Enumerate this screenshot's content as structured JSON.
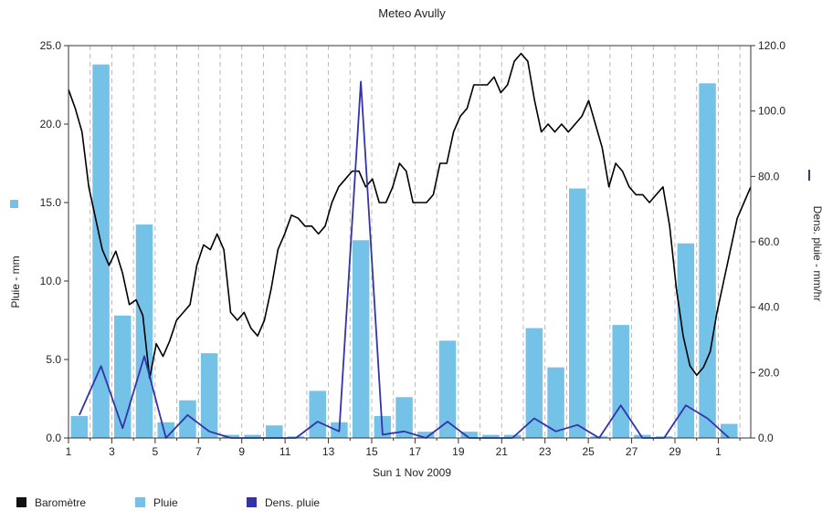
{
  "chart_data": {
    "title": "Meteo  Avully",
    "xlabel": "Sun 1 Nov 2009",
    "ylabel_left": "Pluie - mm",
    "ylabel_right": "Dens. pluie - mm/hr",
    "x_tick_labels": [
      "1",
      "3",
      "5",
      "7",
      "9",
      "11",
      "13",
      "15",
      "17",
      "19",
      "21",
      "23",
      "25",
      "27",
      "29",
      "1"
    ],
    "left_axis": {
      "ticks": [
        "0.0",
        "5.0",
        "10.0",
        "15.0",
        "20.0",
        "25.0"
      ],
      "ylim": [
        0,
        25
      ]
    },
    "right_axis": {
      "ticks": [
        "0.0",
        "20.0",
        "40.0",
        "60.0",
        "80.0",
        "100.0",
        "120.0"
      ],
      "ylim": [
        0,
        120
      ]
    },
    "grid": "dashed vertical",
    "legend_position": "bottom-left",
    "series": [
      {
        "name": "Baromètre",
        "type": "line",
        "color": "#000000",
        "values": [
          22.2,
          21.0,
          19.5,
          16.0,
          14.0,
          12.0,
          11.0,
          11.9,
          10.5,
          8.5,
          8.8,
          7.8,
          3.8,
          6.0,
          5.2,
          6.2,
          7.5,
          8.0,
          8.5,
          11.0,
          12.3,
          12.0,
          13.0,
          12.0,
          8.0,
          7.5,
          8.0,
          7.0,
          6.5,
          7.5,
          9.5,
          12.0,
          13.0,
          14.2,
          14.0,
          13.5,
          13.5,
          13.0,
          13.5,
          15.0,
          16.0,
          16.5,
          17.0,
          17.0,
          16.0,
          16.5,
          15.0,
          15.0,
          16.0,
          17.5,
          17.0,
          15.0,
          15.0,
          15.0,
          15.5,
          17.5,
          17.5,
          19.5,
          20.5,
          21.0,
          22.5,
          22.5,
          22.5,
          23.0,
          22.0,
          22.5,
          24.0,
          24.5,
          24.0,
          21.5,
          19.5,
          20.0,
          19.5,
          20.0,
          19.5,
          20.0,
          20.5,
          21.5,
          20.0,
          18.5,
          16.0,
          17.5,
          17.0,
          16.0,
          15.5,
          15.5,
          15.0,
          15.5,
          16.0,
          13.5,
          9.5,
          6.5,
          4.6,
          4.0,
          4.5,
          5.5,
          8.0,
          10.0,
          12.0,
          14.0,
          15.0,
          16.0
        ]
      },
      {
        "name": "Pluie",
        "type": "bar",
        "color": "#74c2e8",
        "axis": "left",
        "x": [
          1.5,
          2.5,
          3.5,
          4.5,
          5.5,
          6.5,
          7.5,
          8.5,
          9.5,
          10.5,
          11.5,
          12.5,
          13.5,
          14.5,
          15.5,
          16.5,
          17.5,
          18.5,
          19.5,
          20.5,
          21.5,
          22.5,
          23.5,
          24.5,
          25.5,
          26.5,
          27.5,
          28.5,
          29.5,
          30.5,
          31.5
        ],
        "values": [
          1.4,
          23.8,
          7.8,
          13.6,
          1.0,
          2.4,
          5.4,
          0.2,
          0.2,
          0.8,
          0.1,
          3.0,
          1.0,
          12.6,
          1.4,
          2.6,
          0.4,
          6.2,
          0.4,
          0.2,
          0.2,
          7.0,
          4.5,
          15.9,
          0.1,
          7.2,
          0.2,
          0.1,
          12.4,
          22.6,
          0.9
        ]
      },
      {
        "name": "Dens. pluie",
        "type": "line",
        "color": "#3333aa",
        "axis": "right",
        "x": [
          1.5,
          2.5,
          3.5,
          4.5,
          5.5,
          6.5,
          7.5,
          8.5,
          9.5,
          10.5,
          11.5,
          12.5,
          13.5,
          14.5,
          15.5,
          16.5,
          17.5,
          18.5,
          19.5,
          20.5,
          21.5,
          22.5,
          23.5,
          24.5,
          25.5,
          26.5,
          27.5,
          28.5,
          29.5,
          30.5,
          31.5
        ],
        "values": [
          7,
          22,
          3,
          25,
          0,
          7,
          2,
          0,
          0,
          0,
          0,
          5,
          2,
          109,
          1,
          2,
          0,
          5,
          0,
          0,
          0,
          6,
          2,
          4,
          0,
          10,
          0,
          0,
          10,
          6,
          0
        ]
      }
    ]
  },
  "legend": [
    {
      "label": "Baromètre",
      "color": "#111111"
    },
    {
      "label": "Pluie",
      "color": "#74c2e8"
    },
    {
      "label": "Dens. pluie",
      "color": "#3333aa"
    }
  ]
}
